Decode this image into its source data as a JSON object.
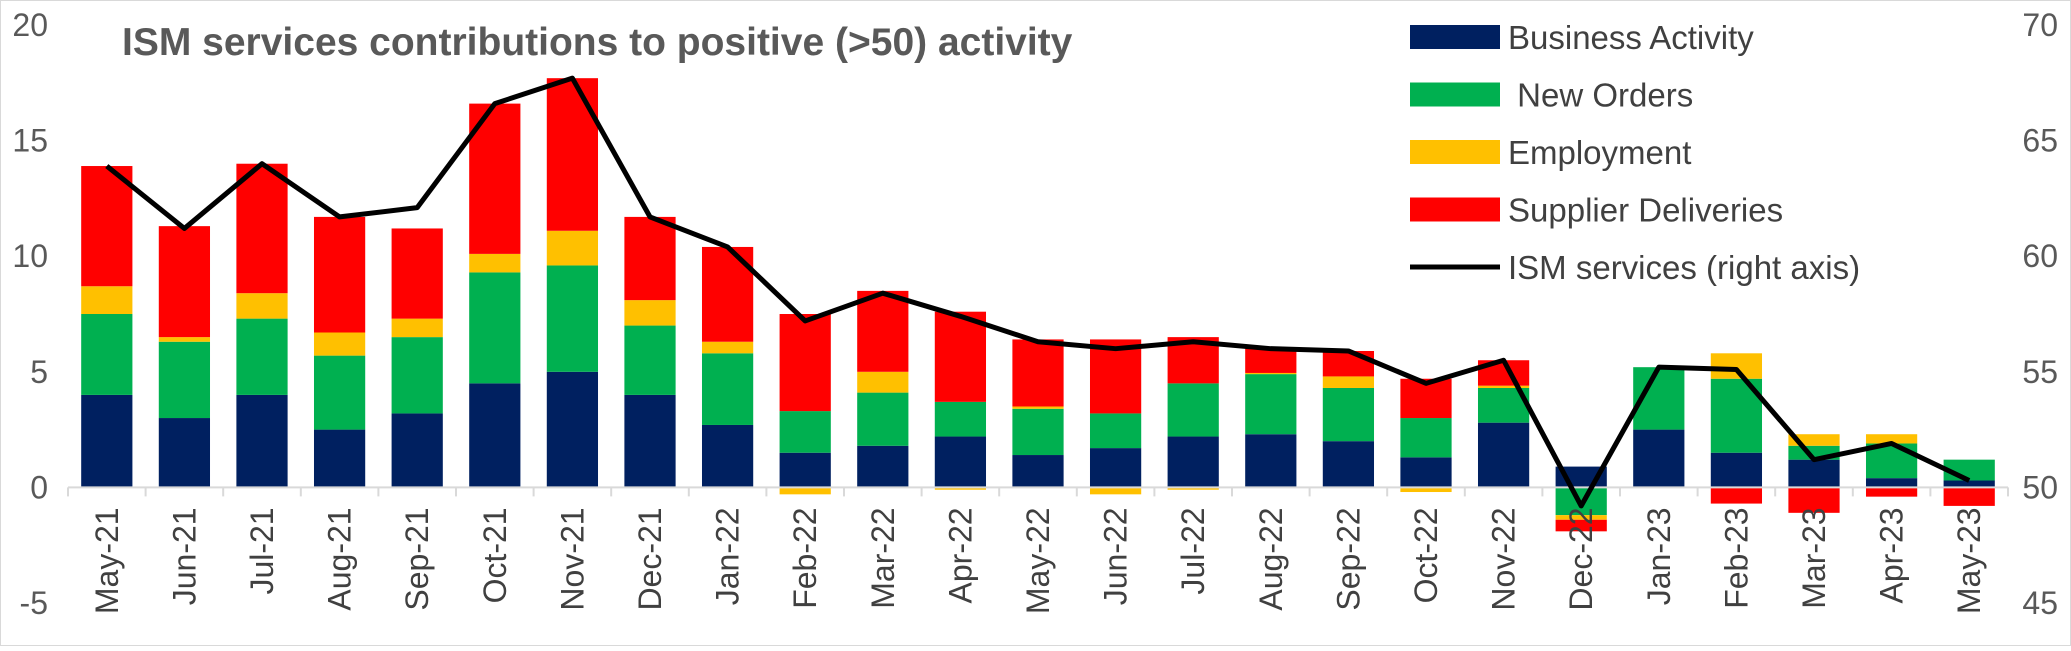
{
  "chart_data": {
    "type": "bar",
    "stacked": true,
    "title": "ISM services contributions to positive (>50) activity",
    "categories": [
      "May-21",
      "Jun-21",
      "Jul-21",
      "Aug-21",
      "Sep-21",
      "Oct-21",
      "Nov-21",
      "Dec-21",
      "Jan-22",
      "Feb-22",
      "Mar-22",
      "Apr-22",
      "May-22",
      "Jun-22",
      "Jul-22",
      "Aug-22",
      "Sep-22",
      "Oct-22",
      "Nov-22",
      "Dec-22",
      "Jan-23",
      "Feb-23",
      "Mar-23",
      "Apr-23",
      "May-23"
    ],
    "series": [
      {
        "name": "Business Activity",
        "color": "#002060",
        "values": [
          4.0,
          3.0,
          4.0,
          2.5,
          3.2,
          4.5,
          5.0,
          4.0,
          2.7,
          1.5,
          1.8,
          2.2,
          1.4,
          1.7,
          2.2,
          2.3,
          2.0,
          1.3,
          2.8,
          0.9,
          2.5,
          1.5,
          1.2,
          0.4,
          0.3
        ]
      },
      {
        "name": " New Orders",
        "color": "#00B050",
        "values": [
          3.5,
          3.3,
          3.3,
          3.2,
          3.3,
          4.8,
          4.6,
          3.0,
          3.1,
          1.8,
          2.3,
          1.5,
          2.0,
          1.5,
          2.3,
          2.6,
          2.3,
          1.7,
          1.5,
          -1.2,
          2.7,
          3.2,
          0.6,
          1.5,
          0.9
        ]
      },
      {
        "name": "Employment",
        "color": "#FFC000",
        "values": [
          1.2,
          0.2,
          1.1,
          1.0,
          0.8,
          0.8,
          1.5,
          1.1,
          0.5,
          -0.3,
          0.9,
          -0.1,
          0.1,
          -0.3,
          -0.1,
          0.05,
          0.5,
          -0.2,
          0.1,
          -0.2,
          0.0,
          1.1,
          0.5,
          0.4,
          0.0
        ]
      },
      {
        "name": "Supplier Deliveries",
        "color": "#FF0000",
        "values": [
          5.2,
          4.8,
          5.6,
          5.0,
          3.9,
          6.5,
          6.6,
          3.6,
          4.1,
          4.2,
          3.5,
          3.9,
          2.9,
          3.2,
          2.0,
          1.1,
          1.1,
          1.7,
          1.1,
          -0.5,
          0.0,
          -0.7,
          -1.1,
          -0.4,
          -0.8
        ]
      }
    ],
    "line_series": {
      "name": "ISM services (right axis)",
      "color": "#000000",
      "axis": "right",
      "values": [
        63.9,
        61.2,
        64.0,
        61.7,
        62.1,
        66.6,
        67.7,
        61.7,
        60.4,
        57.2,
        58.4,
        57.4,
        56.3,
        56.0,
        56.3,
        56.0,
        55.9,
        54.5,
        55.5,
        49.2,
        55.2,
        55.1,
        51.2,
        51.9,
        50.3
      ]
    },
    "ylim": [
      -5,
      20
    ],
    "yticks": [
      -5,
      0,
      5,
      10,
      15,
      20
    ],
    "y2lim": [
      45,
      70
    ],
    "y2ticks": [
      45,
      50,
      55,
      60,
      65,
      70
    ],
    "grid": false,
    "legend_position": "top-right"
  }
}
